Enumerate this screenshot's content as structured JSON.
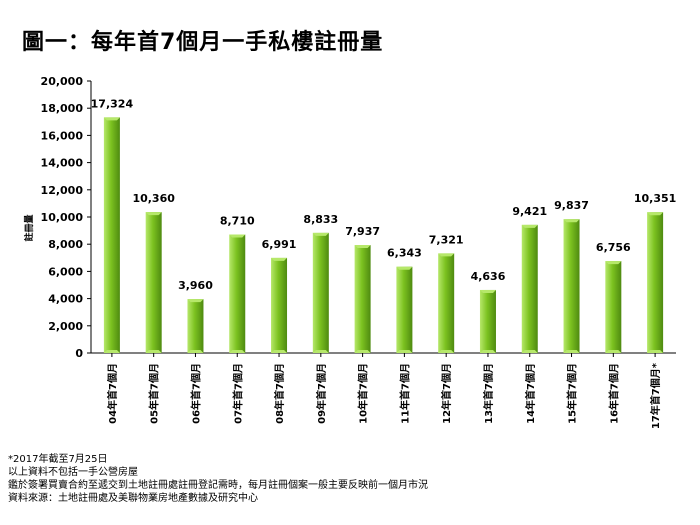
{
  "title": "圖一：每年首7個月一手私樓註冊量",
  "notes": [
    "*2017年截至7月25日",
    "以上資料不包括一手公營房屋",
    "鑑於簽署買賣合約至遞交到土地註冊處註冊登記需時，每月註冊個案一般主要反映前一個月市況",
    "資料來源：土地註冊處及美聯物業房地產數據及研究中心"
  ],
  "colors": {
    "bar_top": "#b6e86a",
    "bar_main": "#7cc220",
    "bar_dark": "#4e8a10"
  },
  "chart_data": {
    "type": "bar",
    "title": "圖一：每年首7個月一手私樓註冊量",
    "ylabel": "註冊量",
    "xlabel": "",
    "ylim": [
      0,
      20000
    ],
    "yticks": [
      "0",
      "2,000",
      "4,000",
      "6,000",
      "8,000",
      "10,000",
      "12,000",
      "14,000",
      "16,000",
      "18,000",
      "20,000"
    ],
    "grid": false,
    "categories": [
      "04年首7個月",
      "05年首7個月",
      "06年首7個月",
      "07年首7個月",
      "08年首7個月",
      "09年首7個月",
      "10年首7個月",
      "11年首7個月",
      "12年首7個月",
      "13年首7個月",
      "14年首7個月",
      "15年首7個月",
      "16年首7個月",
      "17年首7個月*"
    ],
    "values": [
      17324,
      10360,
      3960,
      8710,
      6991,
      8833,
      7937,
      6343,
      7321,
      4636,
      9421,
      9837,
      6756,
      10351
    ],
    "value_labels": [
      "17,324",
      "10,360",
      "3,960",
      "8,710",
      "6,991",
      "8,833",
      "7,937",
      "6,343",
      "7,321",
      "4,636",
      "9,421",
      "9,837",
      "6,756",
      "10,351"
    ]
  }
}
